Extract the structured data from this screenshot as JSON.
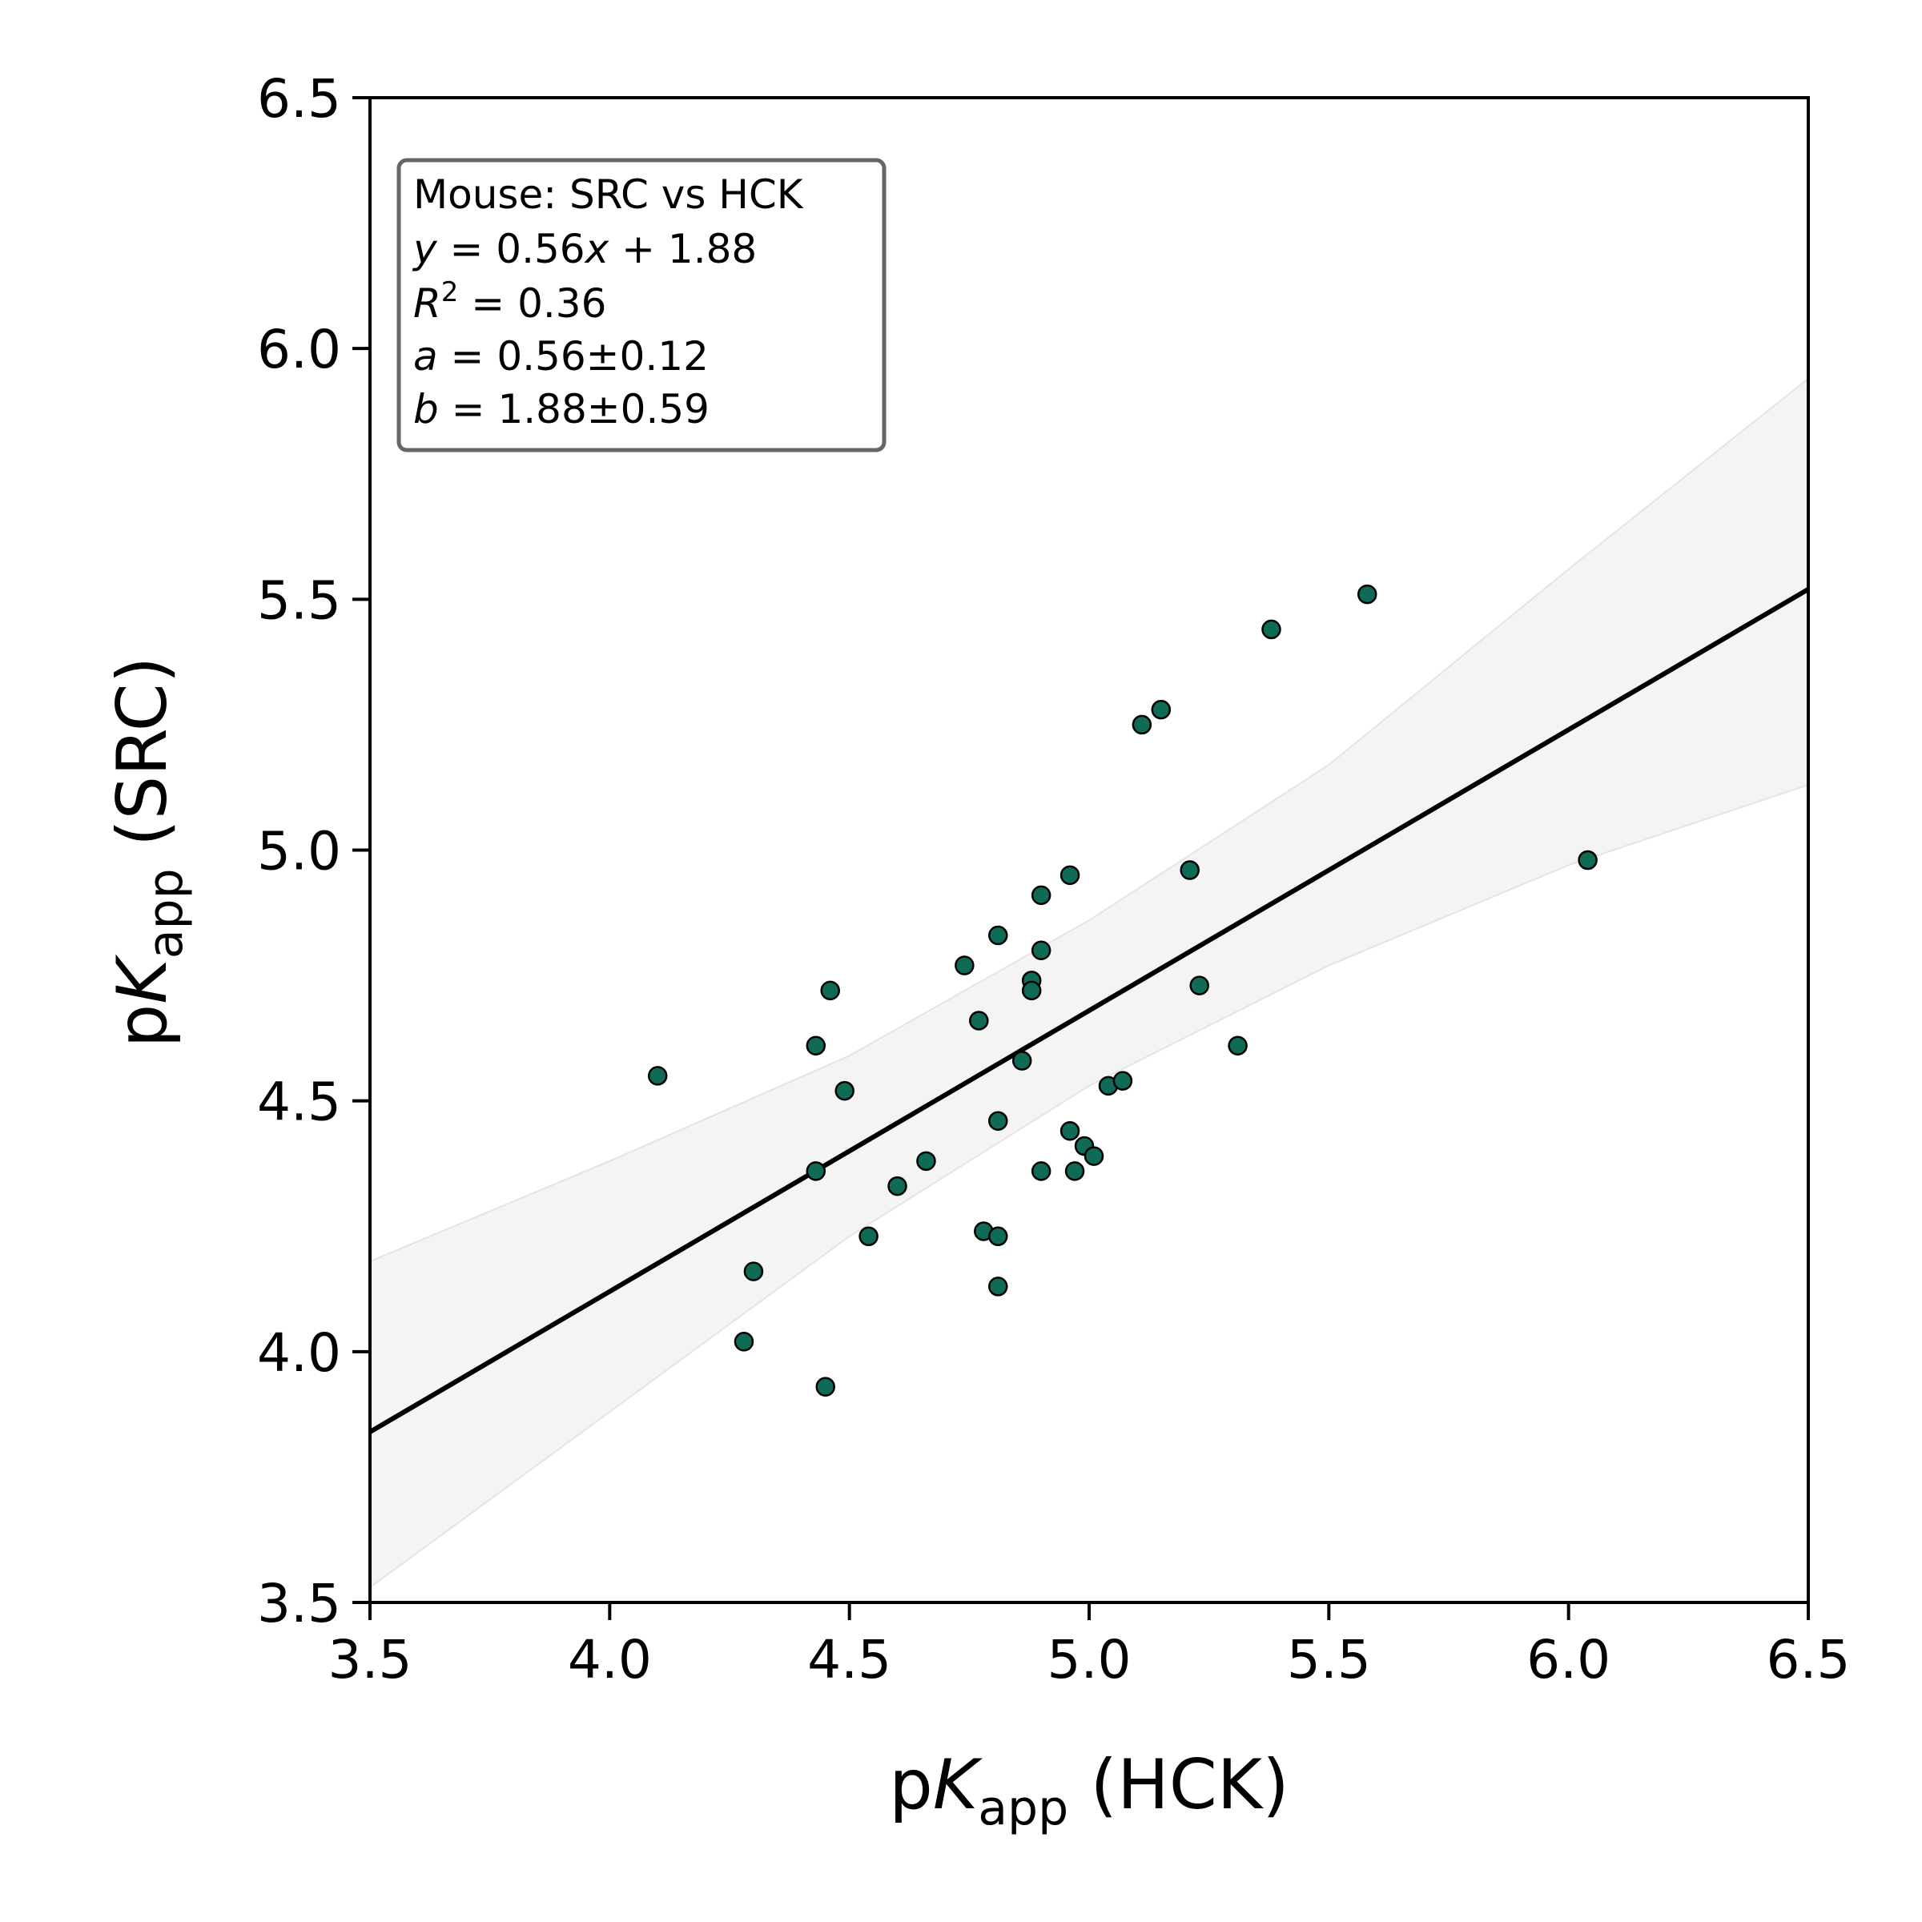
{
  "chart_data": {
    "type": "scatter",
    "xlabel": {
      "prefix": "p",
      "symbol": "K",
      "subscript": "app",
      "suffix": " (HCK)"
    },
    "ylabel": {
      "prefix": "p",
      "symbol": "K",
      "subscript": "app",
      "suffix": " (SRC)"
    },
    "xlim": [
      3.5,
      6.5
    ],
    "ylim": [
      3.5,
      6.5
    ],
    "xticks": [
      "3.5",
      "4.0",
      "4.5",
      "5.0",
      "5.5",
      "6.0",
      "6.5"
    ],
    "yticks": [
      "3.5",
      "4.0",
      "4.5",
      "5.0",
      "5.5",
      "6.0",
      "6.5"
    ],
    "grid": false,
    "point_color": "#0f6b55",
    "point_edge_color": "#000000",
    "line_color": "#000000",
    "band_color": "#ededed",
    "legend_placement": "top-left",
    "annotation": {
      "title": "Mouse: SRC vs HCK",
      "equation": {
        "lhs": "y",
        "a": "0.56",
        "x": "x",
        "b": "1.88"
      },
      "r2": {
        "symbol": "R",
        "exp": "2",
        "value": "0.36"
      },
      "a_param": {
        "symbol": "a",
        "value": "0.56±0.12"
      },
      "b_param": {
        "symbol": "b",
        "value": "1.88±0.59"
      }
    },
    "fit": {
      "slope": 0.56,
      "intercept": 1.88
    },
    "confidence_band": {
      "x": [
        3.5,
        4.0,
        4.5,
        5.0,
        5.5,
        6.0,
        6.5
      ],
      "lower": [
        3.53,
        3.88,
        4.23,
        4.53,
        4.77,
        4.97,
        5.13
      ],
      "upper": [
        4.18,
        4.38,
        4.59,
        4.86,
        5.17,
        5.56,
        5.94
      ]
    },
    "points": [
      {
        "x": 4.1,
        "y": 4.55
      },
      {
        "x": 4.28,
        "y": 4.02
      },
      {
        "x": 4.3,
        "y": 4.16
      },
      {
        "x": 4.43,
        "y": 4.61
      },
      {
        "x": 4.43,
        "y": 4.36
      },
      {
        "x": 4.45,
        "y": 3.93
      },
      {
        "x": 4.46,
        "y": 4.72
      },
      {
        "x": 4.49,
        "y": 4.52
      },
      {
        "x": 4.54,
        "y": 4.23
      },
      {
        "x": 4.6,
        "y": 4.33
      },
      {
        "x": 4.66,
        "y": 4.38
      },
      {
        "x": 4.74,
        "y": 4.77
      },
      {
        "x": 4.77,
        "y": 4.66
      },
      {
        "x": 4.78,
        "y": 4.24
      },
      {
        "x": 4.81,
        "y": 4.83
      },
      {
        "x": 4.81,
        "y": 4.46
      },
      {
        "x": 4.81,
        "y": 4.23
      },
      {
        "x": 4.81,
        "y": 4.13
      },
      {
        "x": 4.86,
        "y": 4.58
      },
      {
        "x": 4.88,
        "y": 4.74
      },
      {
        "x": 4.88,
        "y": 4.72
      },
      {
        "x": 4.9,
        "y": 4.91
      },
      {
        "x": 4.9,
        "y": 4.8
      },
      {
        "x": 4.9,
        "y": 4.36
      },
      {
        "x": 4.96,
        "y": 4.95
      },
      {
        "x": 4.96,
        "y": 4.44
      },
      {
        "x": 4.97,
        "y": 4.36
      },
      {
        "x": 4.99,
        "y": 4.41
      },
      {
        "x": 5.01,
        "y": 4.39
      },
      {
        "x": 5.04,
        "y": 4.53
      },
      {
        "x": 5.07,
        "y": 4.54
      },
      {
        "x": 5.11,
        "y": 5.25
      },
      {
        "x": 5.15,
        "y": 5.28
      },
      {
        "x": 5.21,
        "y": 4.96
      },
      {
        "x": 5.23,
        "y": 4.73
      },
      {
        "x": 5.31,
        "y": 4.61
      },
      {
        "x": 5.38,
        "y": 5.44
      },
      {
        "x": 5.58,
        "y": 5.51
      },
      {
        "x": 6.04,
        "y": 4.98
      }
    ]
  }
}
